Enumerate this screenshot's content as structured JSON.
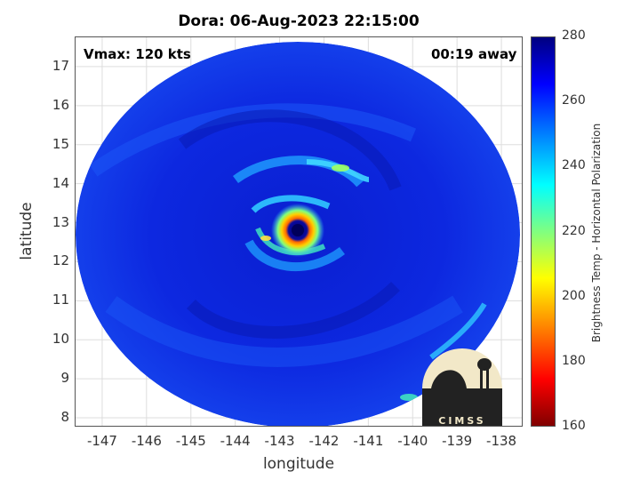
{
  "title": "Dora: 06-Aug-2023 22:15:00",
  "vmax_label": "Vmax: 120 kts",
  "away_label": "00:19 away",
  "logo_text": "CIMSS",
  "chart_data": {
    "type": "heatmap",
    "xlabel": "longitude",
    "ylabel": "latitude",
    "xlim": [
      -147.6,
      -137.5
    ],
    "ylim": [
      7.75,
      17.75
    ],
    "xticks": [
      "-147",
      "-146",
      "-145",
      "-144",
      "-143",
      "-142",
      "-141",
      "-140",
      "-139",
      "-138"
    ],
    "yticks": [
      "8",
      "9",
      "10",
      "11",
      "12",
      "13",
      "14",
      "15",
      "16",
      "17"
    ],
    "grid": true,
    "storm_center": {
      "lon": -142.6,
      "lat": 12.7
    },
    "colorbar": {
      "label": "Brightness Temp - Horizontal Polarization",
      "min": 160,
      "max": 280,
      "ticks": [
        "160",
        "180",
        "200",
        "220",
        "240",
        "260",
        "280"
      ],
      "colormap": "jet"
    }
  }
}
